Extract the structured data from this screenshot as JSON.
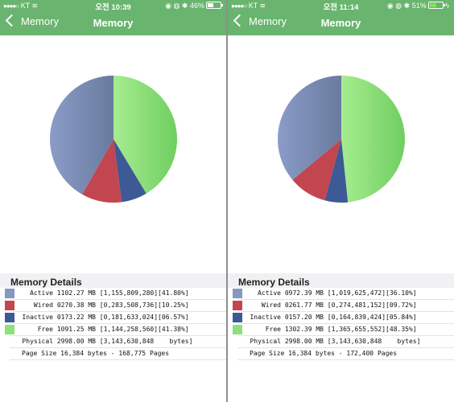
{
  "colors": {
    "navbar": "#69b46e",
    "active": "#8797c0",
    "wired": "#c24650",
    "inactive": "#3d5996",
    "free": "#8ee07c"
  },
  "panels": [
    {
      "status": {
        "carrier": "KT",
        "time": "오전 10:39",
        "battery_pct": "46%",
        "battery_level": 0.46
      },
      "nav": {
        "back_label": "Memory",
        "title": "Memory"
      },
      "details_title": "Memory Details",
      "rows": [
        {
          "label": "Active",
          "text": "1102.27 MB [1,155,809,280][41.80%]"
        },
        {
          "label": "Wired",
          "text": "0270.38 MB [0,283,508,736][10.25%]"
        },
        {
          "label": "Inactive",
          "text": "0173.22 MB [0,181,633,024][06.57%]"
        },
        {
          "label": "Free",
          "text": "1091.25 MB [1,144,258,560][41.38%]"
        },
        {
          "label": "Physical",
          "text": "2998.00 MB [3,143,630,848    bytes]"
        },
        {
          "label": "",
          "text": "Page Size 16,384 bytes - 168,775 Pages"
        }
      ],
      "chart_data": {
        "type": "pie",
        "labels": [
          "Free",
          "Inactive",
          "Wired",
          "Active"
        ],
        "values": [
          41.38,
          6.57,
          10.25,
          41.8
        ]
      }
    },
    {
      "status": {
        "carrier": "KT",
        "time": "오전 11:14",
        "battery_pct": "51%",
        "battery_level": 0.51
      },
      "nav": {
        "back_label": "Memory",
        "title": "Memory"
      },
      "details_title": "Memory Details",
      "rows": [
        {
          "label": "Active",
          "text": "0972.39 MB [1,019,625,472][36.10%]"
        },
        {
          "label": "Wired",
          "text": "0261.77 MB [0,274,481,152][09.72%]"
        },
        {
          "label": "Inactive",
          "text": "0157.20 MB [0,164,839,424][05.84%]"
        },
        {
          "label": "Free",
          "text": "1302.39 MB [1,365,655,552][48.35%]"
        },
        {
          "label": "Physical",
          "text": "2998.00 MB [3,143,630,848    bytes]"
        },
        {
          "label": "",
          "text": "Page Size 16,384 bytes - 172,400 Pages"
        }
      ],
      "chart_data": {
        "type": "pie",
        "labels": [
          "Free",
          "Inactive",
          "Wired",
          "Active"
        ],
        "values": [
          48.35,
          5.84,
          9.72,
          36.1
        ]
      }
    }
  ]
}
